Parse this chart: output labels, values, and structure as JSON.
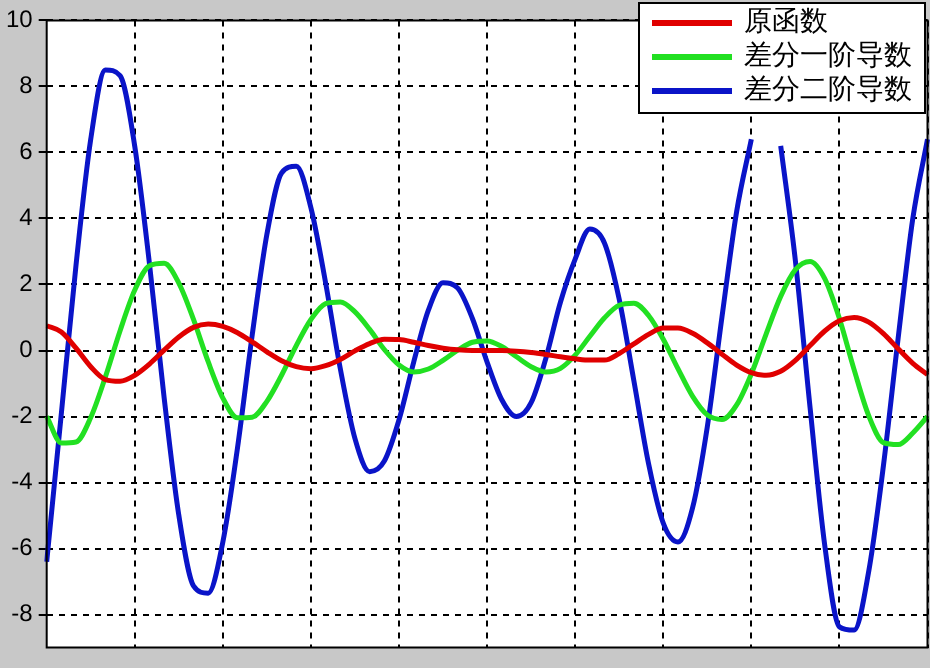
{
  "chart_data": {
    "type": "line",
    "categories": [
      null,
      null,
      null,
      null,
      null,
      null,
      null,
      null,
      null,
      null,
      null,
      null,
      null,
      null,
      null,
      null,
      null,
      null,
      null,
      null,
      null,
      null,
      null,
      null,
      null,
      null,
      null,
      null,
      null,
      null,
      null,
      null,
      null,
      null,
      null,
      null,
      null,
      null,
      null,
      null,
      null,
      null,
      null,
      null,
      null,
      null,
      null,
      null,
      null,
      null,
      null,
      null,
      null,
      null,
      null,
      null,
      null,
      null,
      null,
      null,
      null
    ],
    "series": [
      {
        "name": "原函数",
        "color": "#e00000",
        "values": [
          0.75,
          0.56,
          0.07,
          -0.49,
          -0.88,
          -0.93,
          -0.75,
          -0.41,
          0.01,
          0.41,
          0.7,
          0.8,
          0.73,
          0.54,
          0.26,
          -0.04,
          -0.31,
          -0.49,
          -0.55,
          -0.46,
          -0.27,
          -0.01,
          0.21,
          0.34,
          0.33,
          0.25,
          0.15,
          0.07,
          0.02,
          0,
          0,
          0,
          -0.02,
          -0.06,
          -0.12,
          -0.19,
          -0.25,
          -0.29,
          -0.29,
          -0.09,
          0.2,
          0.49,
          0.68,
          0.68,
          0.52,
          0.23,
          -0.11,
          -0.44,
          -0.67,
          -0.75,
          -0.63,
          -0.3,
          0.15,
          0.59,
          0.9,
          1,
          0.86,
          0.51,
          0.05,
          -0.39,
          -0.73
        ]
      },
      {
        "name": "差分一阶导数",
        "color": "#22e022",
        "values": [
          -2,
          -2.8,
          -2.77,
          -2.03,
          -0.8,
          0.6,
          1.83,
          2.57,
          2.64,
          2.04,
          0.94,
          -0.34,
          -1.44,
          -2.04,
          -2.02,
          -1.54,
          -0.75,
          0.15,
          0.94,
          1.42,
          1.47,
          1.17,
          0.64,
          0.03,
          -0.44,
          -0.65,
          -0.56,
          -0.3,
          0.01,
          0.25,
          0.29,
          0.12,
          -0.19,
          -0.49,
          -0.65,
          -0.54,
          -0.14,
          0.43,
          0.99,
          1.37,
          1.43,
          1.06,
          0.34,
          -0.55,
          -1.39,
          -1.95,
          -2.09,
          -1.65,
          -0.71,
          0.49,
          1.64,
          2.45,
          2.7,
          2.18,
          0.97,
          -0.58,
          -1.98,
          -2.79,
          -2.85,
          -2.5,
          -2
        ]
      },
      {
        "name": "差分二阶导数",
        "color": "#0a14c8",
        "values": [
          -6.4,
          -1.9,
          2.6,
          6.4,
          8.5,
          8.33,
          6.18,
          2.63,
          -1.43,
          -4.99,
          -7.13,
          -7.35,
          -5.8,
          -2.94,
          0.47,
          3.52,
          5.38,
          5.58,
          4.32,
          2.05,
          -0.55,
          -2.67,
          -3.67,
          -3.35,
          -2.1,
          -0.35,
          1.22,
          2.05,
          1.89,
          0.97,
          -0.35,
          -1.49,
          -2,
          -1.58,
          -0.24,
          1.47,
          2.77,
          3.68,
          3.25,
          1.55,
          -0.92,
          -3.43,
          -5.23,
          -5.8,
          -4.76,
          -2.31,
          1.02,
          4.21,
          6.4,
          null,
          6.2,
          2.72,
          -1.73,
          -5.9,
          -8.37,
          -8.47,
          -6.68,
          -3.48,
          0.37,
          4,
          6.4
        ]
      }
    ],
    "ylim": [
      -9,
      10
    ],
    "yticks": [
      -8,
      -6,
      -4,
      -2,
      0,
      2,
      4,
      6,
      8,
      10
    ],
    "grid": true,
    "legend": "top right",
    "tick_labels": "y",
    "line_style": "solid",
    "marker": "none"
  }
}
